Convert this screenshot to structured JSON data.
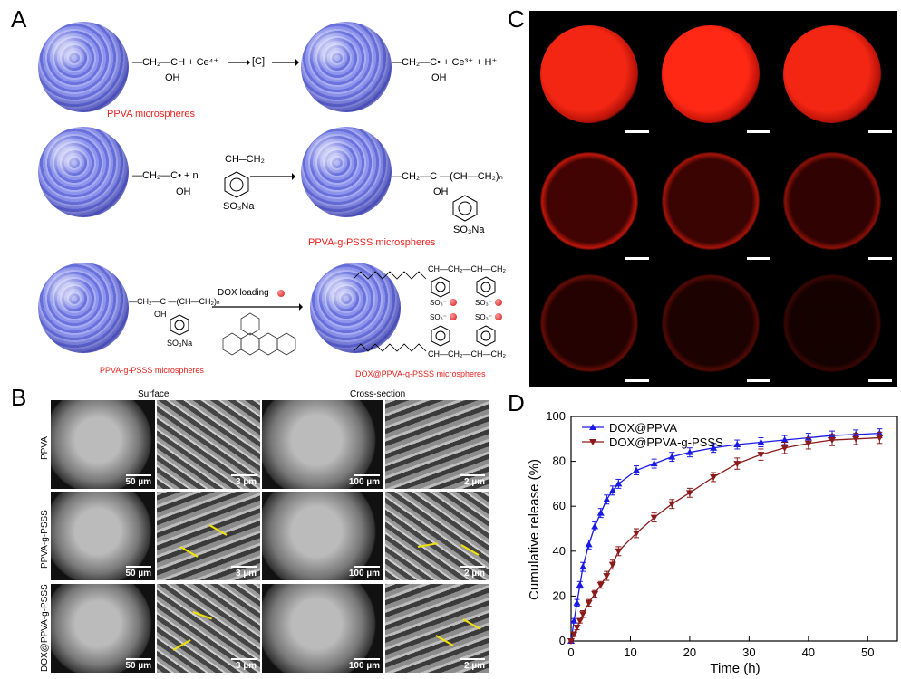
{
  "panels": {
    "a": "A",
    "b": "B",
    "c": "C",
    "d": "D"
  },
  "panelA": {
    "row1": {
      "left_chem": "—CH₂—CH + Ce⁴⁺",
      "left_oh": "OH",
      "arrow1_label": "[C]",
      "right_chem": "—CH₂—C• + Ce³⁺ + H⁺",
      "right_oh": "OH",
      "caption": "PPVA microspheres"
    },
    "row2": {
      "left_chem": "—CH₂—C• + n",
      "left_oh": "OH",
      "monomer_top": "CH═CH₂",
      "monomer_bottom": "SO₃Na",
      "product_chem": "—CH₂—C —(CH—CH₂)ₙ",
      "product_oh": "OH",
      "product_sub": "SO₃Na",
      "caption": "PPVA-g-PSSS microspheres"
    },
    "row3": {
      "left_chem": "—CH₂—C —(CH—CH₂)ₙ",
      "left_oh": "OH",
      "left_sub": "SO₃Na",
      "arrow_label": "DOX loading",
      "right_top": "CH—CH₂—CH—CH₂",
      "right_so3": "SO₃⁻",
      "right_bottom": "CH—CH₂—CH—CH₂",
      "caption_left": "PPVA-g-PSSS microspheres",
      "caption_right": "DOX@PPVA-g-PSSS microspheres"
    }
  },
  "panelB": {
    "col_surface": "Surface",
    "col_cross": "Cross-section",
    "rows": [
      {
        "label": "PPVA",
        "scales": [
          "50 µm",
          "3 µm",
          "100 µm",
          "2 µm"
        ]
      },
      {
        "label": "PPVA-g-PSSS",
        "scales": [
          "50 µm",
          "3 µm",
          "100 µm",
          "2 µm"
        ]
      },
      {
        "label": "DOX@PPVA-g-PSSS",
        "scales": [
          "50 µm",
          "3 µm",
          "100 µm",
          "2 µm"
        ]
      }
    ]
  },
  "panelC": {
    "rows": [
      {
        "intensity": [
          0.95,
          1.0,
          0.95
        ],
        "style": "filled"
      },
      {
        "intensity": [
          0.75,
          0.65,
          0.55
        ],
        "style": "ring"
      },
      {
        "intensity": [
          0.4,
          0.32,
          0.22
        ],
        "style": "ring"
      }
    ],
    "color": "#ff1a0a"
  },
  "chart_data": {
    "type": "line",
    "xlabel": "Time (h)",
    "ylabel": "Cumulative release (%)",
    "xlim": [
      0,
      55
    ],
    "ylim": [
      0,
      100
    ],
    "xticks": [
      0,
      10,
      20,
      30,
      40,
      50
    ],
    "yticks": [
      0,
      20,
      40,
      60,
      80,
      100
    ],
    "legend_position": "top-left",
    "series": [
      {
        "name": "DOX@PPVA",
        "color": "#1a1ae6",
        "marker": "triangle-up",
        "x": [
          0,
          0.5,
          1,
          1.5,
          2,
          3,
          4,
          5,
          6,
          7,
          8,
          11,
          14,
          17,
          20,
          24,
          28,
          32,
          36,
          40,
          44,
          48,
          52
        ],
        "y": [
          0,
          9,
          17,
          25,
          33,
          43,
          51,
          57,
          63,
          67,
          70,
          76,
          79,
          82,
          84,
          86,
          87.5,
          88.5,
          89.5,
          90.5,
          91.5,
          92,
          92.5
        ],
        "err": [
          0.5,
          1,
          1.5,
          1.5,
          2,
          2,
          2,
          2,
          2,
          2,
          2,
          2,
          2,
          2,
          2,
          2,
          2,
          2,
          2,
          2,
          2,
          2,
          2
        ]
      },
      {
        "name": "DOX@PPVA-g-PSSS",
        "color": "#8b1a1a",
        "marker": "triangle-down",
        "x": [
          0,
          0.5,
          1,
          1.5,
          2,
          3,
          4,
          5,
          6,
          7,
          8,
          11,
          14,
          17,
          20,
          24,
          28,
          32,
          36,
          40,
          44,
          48,
          52
        ],
        "y": [
          0,
          3,
          6,
          9,
          12,
          17,
          21,
          25,
          29,
          34,
          40,
          48,
          55,
          61,
          66,
          73,
          79,
          83,
          86,
          88,
          89.5,
          90,
          90.5
        ],
        "err": [
          0.5,
          1,
          1,
          1,
          1.5,
          1.5,
          1.5,
          1.5,
          2,
          2,
          2,
          2,
          2,
          2,
          2,
          2,
          2.5,
          2.5,
          2.5,
          2.5,
          2.5,
          2.5,
          2.5
        ]
      }
    ]
  }
}
